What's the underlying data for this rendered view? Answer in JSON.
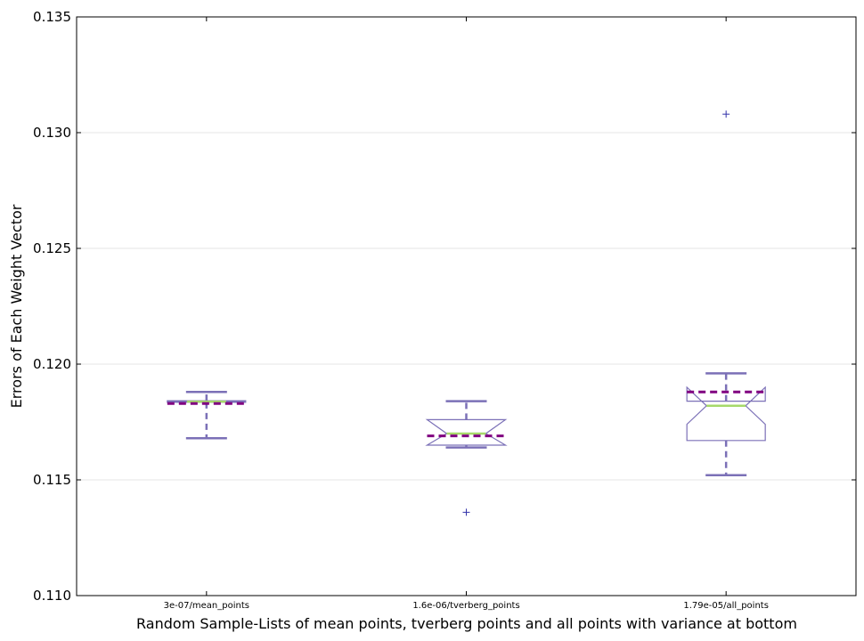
{
  "chart_data": {
    "type": "box",
    "notched": true,
    "xlabel": "Random Sample-Lists of  mean points, tverberg points and all points with variance at bottom",
    "ylabel": "Errors of Each Weight Vector",
    "ylim": [
      0.11,
      0.135
    ],
    "yticks": [
      0.11,
      0.115,
      0.12,
      0.125,
      0.13,
      0.135
    ],
    "ytick_labels": [
      "0.110",
      "0.115",
      "0.120",
      "0.125",
      "0.130",
      "0.135"
    ],
    "grid": "horizontal",
    "colors": {
      "box": "#7b70b7",
      "whisker": "#7b70b7",
      "median": "#a6d96a",
      "mean": "#800080",
      "flier": "#3333aa"
    },
    "categories": [
      "3e-07/mean_points",
      "1.6e-06/tverberg_points",
      "1.79e-05/all_points"
    ],
    "boxes": [
      {
        "label": "3e-07/mean_points",
        "whisker_low": 0.1168,
        "q1": 0.11835,
        "median": 0.11838,
        "q3": 0.11842,
        "whisker_high": 0.1188,
        "mean": 0.1183,
        "notch_low": 0.11836,
        "notch_high": 0.1184,
        "fliers": []
      },
      {
        "label": "1.6e-06/tverberg_points",
        "whisker_low": 0.1164,
        "q1": 0.1165,
        "median": 0.117,
        "q3": 0.1176,
        "whisker_high": 0.1184,
        "mean": 0.1169,
        "notch_low": 0.1165,
        "notch_high": 0.1176,
        "fliers": [
          0.1136
        ]
      },
      {
        "label": "1.79e-05/all_points",
        "whisker_low": 0.1152,
        "q1": 0.1167,
        "median": 0.1182,
        "q3": 0.1184,
        "whisker_high": 0.1196,
        "mean": 0.1188,
        "notch_low": 0.1174,
        "notch_high": 0.119,
        "fliers": [
          0.1308
        ]
      }
    ]
  }
}
